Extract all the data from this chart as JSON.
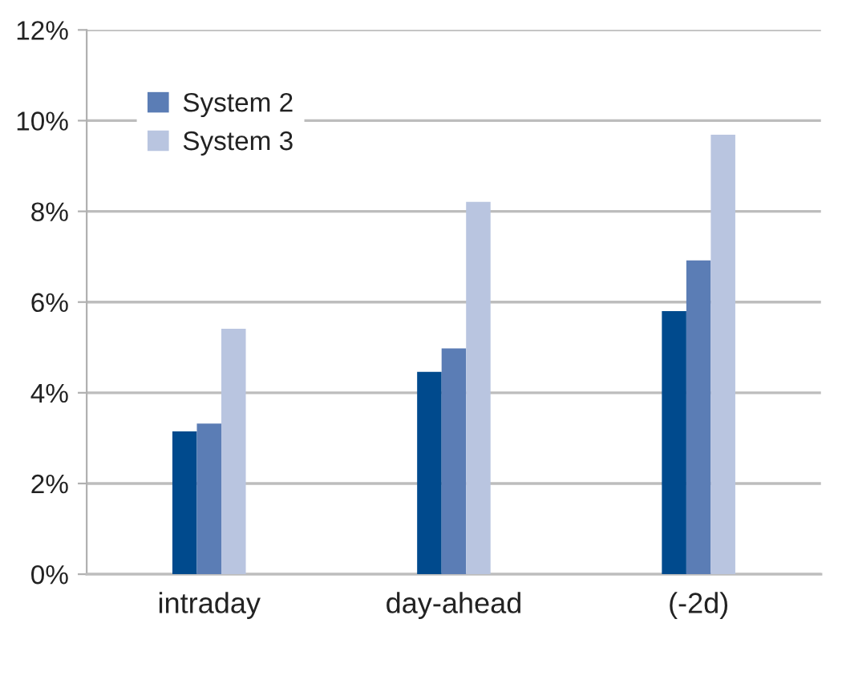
{
  "chart_data": {
    "type": "bar",
    "categories": [
      "intraday",
      "day-ahead",
      "(-2d)"
    ],
    "series": [
      {
        "color": "#004a8d",
        "values": [
          3.15,
          4.46,
          5.8
        ]
      },
      {
        "name": "System 2",
        "color": "#5b7db5",
        "values": [
          3.32,
          4.98,
          6.92
        ]
      },
      {
        "name": "System 3",
        "color": "#b9c5e0",
        "values": [
          5.41,
          8.21,
          9.69
        ]
      }
    ],
    "ylim": [
      0,
      12
    ],
    "yticks": [
      {
        "value": 0,
        "label": "0%"
      },
      {
        "value": 2,
        "label": "2%"
      },
      {
        "value": 4,
        "label": "4%"
      },
      {
        "value": 6,
        "label": "6%"
      },
      {
        "value": 8,
        "label": "8%"
      },
      {
        "value": 10,
        "label": "10%"
      },
      {
        "value": 12,
        "label": "12%"
      }
    ],
    "grid": "y",
    "legend": "top left"
  }
}
